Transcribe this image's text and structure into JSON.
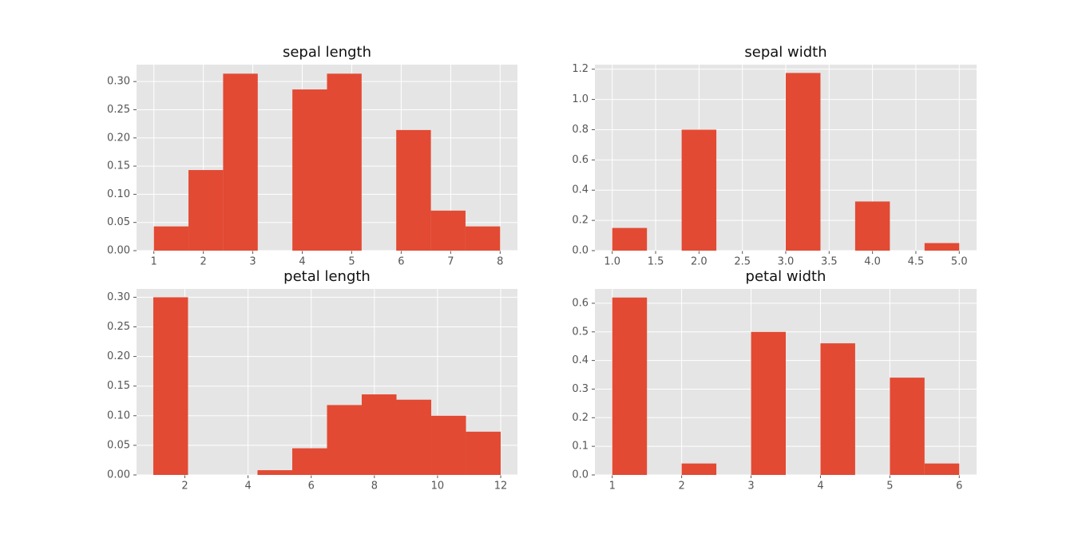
{
  "chart_data": [
    {
      "type": "histogram",
      "title": "sepal length",
      "color": "#E24A33",
      "grid": true,
      "bins": [
        1,
        1.7,
        2.4,
        3.1,
        3.8,
        4.5,
        5.2,
        5.9,
        6.6,
        7.3,
        8
      ],
      "values": [
        0.043,
        0.143,
        0.314,
        0,
        0.286,
        0.314,
        0,
        0.214,
        0.071,
        0.043
      ],
      "xlim": [
        0.65,
        8.35
      ],
      "ylim": [
        0,
        0.33
      ],
      "xticks": [
        1,
        2,
        3,
        4,
        5,
        6,
        7,
        8
      ],
      "yticks": [
        {
          "value": 0,
          "label": "0.00"
        },
        {
          "value": 0.05,
          "label": "0.05"
        },
        {
          "value": 0.1,
          "label": "0.10"
        },
        {
          "value": 0.15,
          "label": "0.15"
        },
        {
          "value": 0.2,
          "label": "0.20"
        },
        {
          "value": 0.25,
          "label": "0.25"
        },
        {
          "value": 0.3,
          "label": "0.30"
        }
      ]
    },
    {
      "type": "histogram",
      "title": "sepal width",
      "color": "#E24A33",
      "grid": true,
      "bins": [
        1,
        1.4,
        1.8,
        2.2,
        2.6,
        3,
        3.4,
        3.8,
        4.2,
        4.6,
        5
      ],
      "values": [
        0.15,
        0,
        0.8,
        0,
        0,
        1.175,
        0,
        0.325,
        0,
        0.05
      ],
      "xlim": [
        0.8,
        5.2
      ],
      "ylim": [
        0,
        1.23
      ],
      "xticks": [
        {
          "value": 1,
          "label": "1.0"
        },
        1.5,
        {
          "value": 2,
          "label": "2.0"
        },
        2.5,
        {
          "value": 3,
          "label": "3.0"
        },
        3.5,
        {
          "value": 4,
          "label": "4.0"
        },
        4.5,
        {
          "value": 5,
          "label": "5.0"
        }
      ],
      "yticks": [
        {
          "value": 0,
          "label": "0.0"
        },
        0.2,
        0.4,
        0.6,
        0.8,
        {
          "value": 1,
          "label": "1.0"
        },
        1.2
      ]
    },
    {
      "type": "histogram",
      "title": "petal length",
      "color": "#E24A33",
      "grid": true,
      "bins": [
        1,
        2.1,
        3.2,
        4.3,
        5.4,
        6.5,
        7.6,
        8.7,
        9.8,
        10.9,
        12
      ],
      "values": [
        0.3,
        0,
        0,
        0.008,
        0.045,
        0.118,
        0.136,
        0.127,
        0.1,
        0.073
      ],
      "xlim": [
        0.47,
        12.53
      ],
      "ylim": [
        0,
        0.314
      ],
      "xticks": [
        2,
        4,
        6,
        8,
        10,
        12
      ],
      "yticks": [
        {
          "value": 0,
          "label": "0.00"
        },
        {
          "value": 0.05,
          "label": "0.05"
        },
        {
          "value": 0.1,
          "label": "0.10"
        },
        {
          "value": 0.15,
          "label": "0.15"
        },
        {
          "value": 0.2,
          "label": "0.20"
        },
        {
          "value": 0.25,
          "label": "0.25"
        },
        {
          "value": 0.3,
          "label": "0.30"
        }
      ]
    },
    {
      "type": "histogram",
      "title": "petal width",
      "color": "#E24A33",
      "grid": true,
      "bins": [
        1,
        1.5,
        2,
        2.5,
        3,
        3.5,
        4,
        4.5,
        5,
        5.5,
        6
      ],
      "values": [
        0.62,
        0,
        0.04,
        0,
        0.5,
        0,
        0.46,
        0,
        0.34,
        0.04
      ],
      "xlim": [
        0.75,
        6.25
      ],
      "ylim": [
        0,
        0.65
      ],
      "xticks": [
        1,
        2,
        3,
        4,
        5,
        6
      ],
      "yticks": [
        {
          "value": 0,
          "label": "0.0"
        },
        0.1,
        0.2,
        0.3,
        0.4,
        0.5,
        0.6
      ]
    }
  ]
}
